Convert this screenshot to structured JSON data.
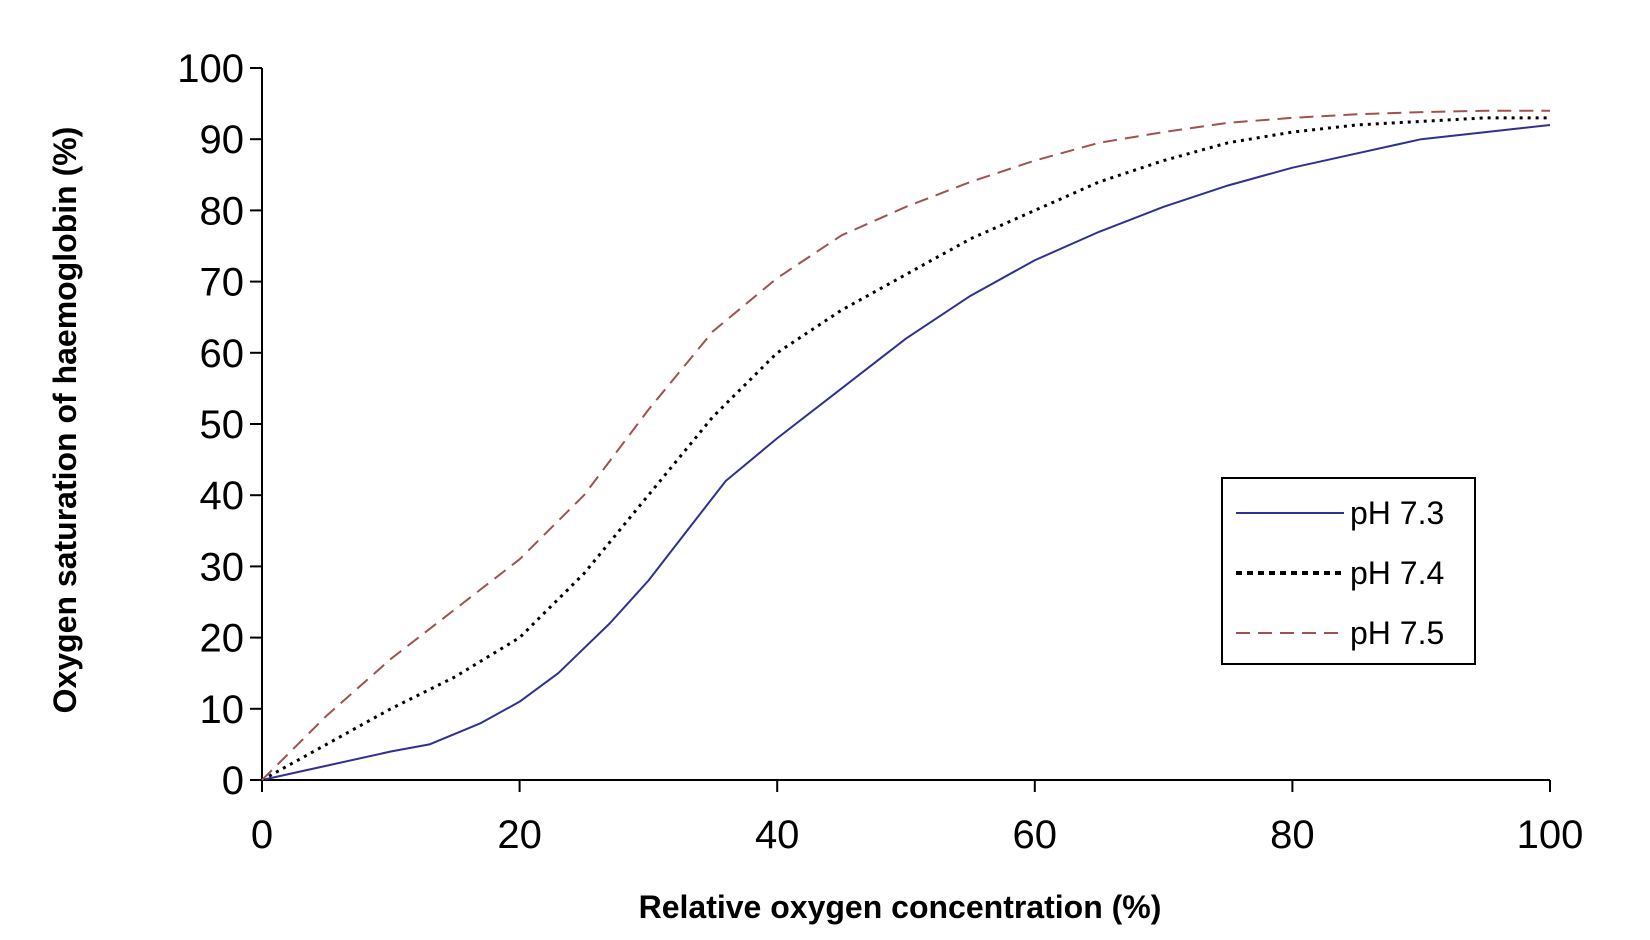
{
  "chart_data": {
    "type": "line",
    "title": "",
    "xlabel": "Relative oxygen concentration (%)",
    "ylabel": "Oxygen saturation of haemoglobin (%)",
    "xlim": [
      0,
      100
    ],
    "ylim": [
      0,
      100
    ],
    "xticks": [
      "0",
      "20",
      "40",
      "60",
      "80",
      "100"
    ],
    "yticks": [
      "0",
      "10",
      "20",
      "30",
      "40",
      "50",
      "60",
      "70",
      "80",
      "90",
      "100"
    ],
    "grid": false,
    "legend_position": "right",
    "series": [
      {
        "name": "pH 7.3",
        "color": "#2e3192",
        "style": "solid",
        "x": [
          0,
          5,
          10,
          13,
          17,
          20,
          23,
          27,
          30,
          33,
          36,
          40,
          45,
          50,
          55,
          60,
          65,
          70,
          75,
          80,
          85,
          90,
          95,
          100
        ],
        "y": [
          0,
          2,
          4,
          5,
          8,
          11,
          15,
          22,
          28,
          35,
          42,
          48,
          55,
          62,
          68,
          73,
          77,
          80.5,
          83.5,
          86,
          88,
          90,
          91,
          92
        ]
      },
      {
        "name": "pH 7.4",
        "color": "#000000",
        "style": "dotted",
        "x": [
          0,
          5,
          10,
          15,
          20,
          25,
          30,
          35,
          40,
          45,
          50,
          55,
          60,
          65,
          70,
          75,
          80,
          85,
          90,
          95,
          100
        ],
        "y": [
          0,
          5,
          10,
          14.5,
          20,
          29,
          40,
          51,
          60,
          66,
          71,
          76,
          80,
          84,
          87,
          89.5,
          91,
          92,
          92.5,
          93,
          93
        ]
      },
      {
        "name": "pH 7.5",
        "color": "#a0524e",
        "style": "dashed",
        "x": [
          0,
          5,
          10,
          15,
          20,
          25,
          30,
          35,
          40,
          45,
          50,
          55,
          60,
          65,
          70,
          75,
          80,
          85,
          90,
          95,
          100
        ],
        "y": [
          0,
          9,
          17,
          24,
          31,
          40,
          52,
          63,
          70.5,
          76.5,
          80.5,
          84,
          87,
          89.5,
          91,
          92.3,
          93,
          93.5,
          93.8,
          94,
          94
        ]
      }
    ]
  }
}
